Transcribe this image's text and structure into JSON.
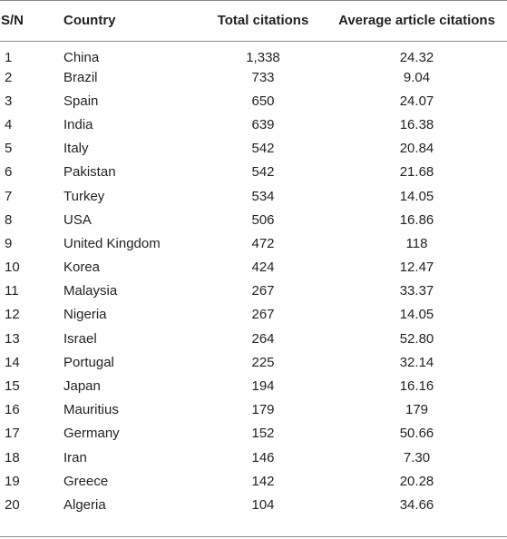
{
  "table": {
    "headers": {
      "sn": "S/N",
      "country": "Country",
      "total": "Total citations",
      "avg": "Average article citations"
    },
    "rows": [
      {
        "sn": "1",
        "country": "China",
        "total": "1,338",
        "avg": "24.32"
      },
      {
        "sn": "2",
        "country": "Brazil",
        "total": "733",
        "avg": "9.04"
      },
      {
        "sn": "3",
        "country": "Spain",
        "total": "650",
        "avg": "24.07"
      },
      {
        "sn": "4",
        "country": "India",
        "total": "639",
        "avg": "16.38"
      },
      {
        "sn": "5",
        "country": "Italy",
        "total": "542",
        "avg": "20.84"
      },
      {
        "sn": "6",
        "country": "Pakistan",
        "total": "542",
        "avg": "21.68"
      },
      {
        "sn": "7",
        "country": "Turkey",
        "total": "534",
        "avg": "14.05"
      },
      {
        "sn": "8",
        "country": "USA",
        "total": "506",
        "avg": "16.86"
      },
      {
        "sn": "9",
        "country": "United Kingdom",
        "total": "472",
        "avg": "118"
      },
      {
        "sn": "10",
        "country": "Korea",
        "total": "424",
        "avg": "12.47"
      },
      {
        "sn": "11",
        "country": "Malaysia",
        "total": "267",
        "avg": "33.37"
      },
      {
        "sn": "12",
        "country": "Nigeria",
        "total": "267",
        "avg": "14.05"
      },
      {
        "sn": "13",
        "country": "Israel",
        "total": "264",
        "avg": "52.80"
      },
      {
        "sn": "14",
        "country": "Portugal",
        "total": "225",
        "avg": "32.14"
      },
      {
        "sn": "15",
        "country": "Japan",
        "total": "194",
        "avg": "16.16"
      },
      {
        "sn": "16",
        "country": "Mauritius",
        "total": "179",
        "avg": "179"
      },
      {
        "sn": "17",
        "country": "Germany",
        "total": "152",
        "avg": "50.66"
      },
      {
        "sn": "18",
        "country": "Iran",
        "total": "146",
        "avg": "7.30"
      },
      {
        "sn": "19",
        "country": "Greece",
        "total": "142",
        "avg": "20.28"
      },
      {
        "sn": "20",
        "country": "Algeria",
        "total": "104",
        "avg": "34.66"
      }
    ]
  }
}
